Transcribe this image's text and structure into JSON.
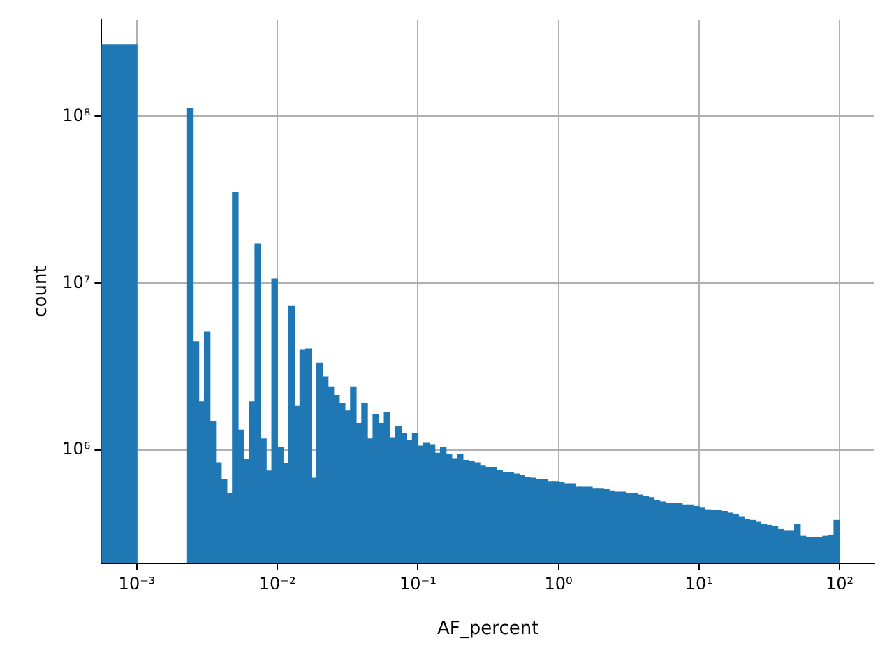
{
  "chart_data": {
    "type": "histogram",
    "xlabel": "AF_percent",
    "ylabel": "count",
    "color": "#1f77b4",
    "log": "xy",
    "grid": true,
    "legend": false,
    "xlim": [
      0.00056,
      177
    ],
    "ylim": [
      210000,
      380000000
    ],
    "xticks": [
      {
        "value": 0.001,
        "label": "10⁻³"
      },
      {
        "value": 0.01,
        "label": "10⁻²"
      },
      {
        "value": 0.1,
        "label": "10⁻¹"
      },
      {
        "value": 1,
        "label": "10⁰"
      },
      {
        "value": 10,
        "label": "10¹"
      },
      {
        "value": 100,
        "label": "10²"
      }
    ],
    "yticks": [
      {
        "value": 1000000,
        "label": "10⁶"
      },
      {
        "value": 10000000,
        "label": "10⁷"
      },
      {
        "value": 100000000,
        "label": "10⁸"
      }
    ],
    "bins": [
      0.00056,
      0.001,
      0.0022909,
      0.0025119,
      0.0027542,
      0.00302,
      0.0033113,
      0.0036308,
      0.0039811,
      0.0043652,
      0.0047863,
      0.0052481,
      0.0057544,
      0.0063096,
      0.0069183,
      0.0075858,
      0.0083176,
      0.0091201,
      0.01,
      0.010965,
      0.012023,
      0.013183,
      0.014454,
      0.015849,
      0.017378,
      0.019055,
      0.020893,
      0.022909,
      0.025119,
      0.027542,
      0.0302,
      0.033113,
      0.036308,
      0.039811,
      0.043652,
      0.047863,
      0.052481,
      0.057544,
      0.063096,
      0.069183,
      0.075858,
      0.083176,
      0.091201,
      0.1,
      0.10965,
      0.12023,
      0.13183,
      0.14454,
      0.15849,
      0.17378,
      0.19055,
      0.20893,
      0.22909,
      0.25119,
      0.27542,
      0.302,
      0.33113,
      0.36308,
      0.39811,
      0.43652,
      0.47863,
      0.52481,
      0.57544,
      0.63096,
      0.69183,
      0.75858,
      0.83176,
      0.91201,
      1,
      1.0965,
      1.2023,
      1.3183,
      1.4454,
      1.5849,
      1.7378,
      1.9055,
      2.0893,
      2.2909,
      2.5119,
      2.7542,
      3.02,
      3.3113,
      3.6308,
      3.9811,
      4.3652,
      4.7863,
      5.2481,
      5.7544,
      6.3096,
      6.9183,
      7.5858,
      8.3176,
      9.1201,
      10,
      10.965,
      12.023,
      13.183,
      14.454,
      15.849,
      17.378,
      19.055,
      20.893,
      22.909,
      25.119,
      27.542,
      30.2,
      33.113,
      36.308,
      39.811,
      43.652,
      47.863,
      52.481,
      57.544,
      63.096,
      69.183,
      75.858,
      83.176,
      91.201,
      100
    ],
    "values": [
      269000000,
      null,
      112000000,
      4470000,
      1950000,
      5100000,
      1480000,
      840000,
      665000,
      550000,
      35200000,
      1320000,
      880000,
      1950000,
      17200000,
      1170000,
      750000,
      10600000,
      1040000,
      830000,
      7260000,
      1830000,
      3970000,
      4050000,
      680000,
      3330000,
      2750000,
      2400000,
      2130000,
      1900000,
      1720000,
      2400000,
      1450000,
      1900000,
      1170000,
      1630000,
      1450000,
      1690000,
      1190000,
      1390000,
      1260000,
      1150000,
      1260000,
      1060000,
      1100000,
      1080000,
      960000,
      1040000,
      940000,
      890000,
      940000,
      870000,
      860000,
      840000,
      810000,
      790000,
      790000,
      760000,
      730000,
      730000,
      720000,
      710000,
      690000,
      680000,
      665000,
      665000,
      650000,
      650000,
      640000,
      630000,
      630000,
      600000,
      600000,
      600000,
      590000,
      590000,
      580000,
      570000,
      560000,
      560000,
      550000,
      550000,
      540000,
      530000,
      520000,
      500000,
      490000,
      480000,
      480000,
      480000,
      470000,
      470000,
      460000,
      450000,
      440000,
      435000,
      435000,
      430000,
      420000,
      410000,
      400000,
      385000,
      380000,
      370000,
      360000,
      355000,
      350000,
      335000,
      330000,
      330000,
      360000,
      305000,
      300000,
      300000,
      300000,
      305000,
      310000,
      380000
    ]
  }
}
